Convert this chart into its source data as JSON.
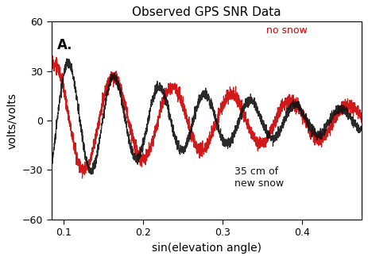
{
  "title": "Observed GPS SNR Data",
  "xlabel": "sin(elevation angle)",
  "ylabel": "volts/volts",
  "xlim": [
    0.085,
    0.475
  ],
  "ylim": [
    -60,
    60
  ],
  "xticks": [
    0.1,
    0.2,
    0.3,
    0.4
  ],
  "yticks": [
    -60,
    -30,
    0,
    30,
    60
  ],
  "label_A": "A.",
  "annotation_no_snow": "no snow",
  "annotation_snow": "35 cm of\nnew snow",
  "color_no_snow": "#cc0000",
  "color_snow": "#111111",
  "background_color": "#ffffff",
  "noise_amplitude_no_snow": 2.0,
  "noise_amplitude_snow": 1.5,
  "freq_no_snow": 13.5,
  "freq_snow": 17.5,
  "amplitude_no_snow": 35,
  "amplitude_snow": 38,
  "decay_no_snow": 3.5,
  "decay_snow": 4.5,
  "phase_no_snow": 1.2,
  "phase_snow": -0.8,
  "title_fontsize": 11,
  "label_fontsize": 10,
  "tick_fontsize": 9
}
